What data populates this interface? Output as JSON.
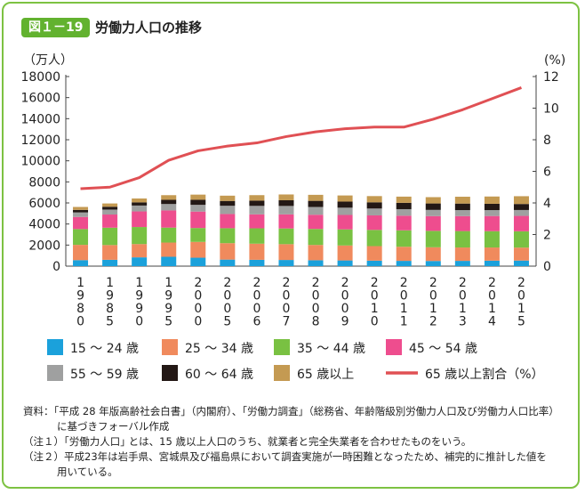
{
  "figure": {
    "badge": "図１－19",
    "title": "労働力人口の推移"
  },
  "colors": {
    "frame": "#7dc242",
    "badge": "#62b22f",
    "ratio_line": "#e05054"
  },
  "chart_data": {
    "type": "bar",
    "stacked": true,
    "left_unit": "（万人）",
    "right_unit": "(%)",
    "ylim_left": [
      0,
      18000
    ],
    "yticks_left": [
      "0",
      "2000",
      "4000",
      "6000",
      "8000",
      "10000",
      "12000",
      "14000",
      "16000",
      "18000"
    ],
    "ylim_right": [
      0,
      12
    ],
    "yticks_right": [
      "0",
      "2",
      "4",
      "6",
      "8",
      "10",
      "12"
    ],
    "categories": [
      "1980",
      "1985",
      "1990",
      "1995",
      "2000",
      "2005",
      "2006",
      "2007",
      "2008",
      "2009",
      "2010",
      "2011",
      "2012",
      "2013",
      "2014",
      "2015"
    ],
    "series": [
      {
        "name": "15 ～ 24 歳",
        "color": "#1ba1db",
        "values": [
          570,
          600,
          834,
          888,
          800,
          620,
          600,
          585,
          560,
          540,
          520,
          500,
          490,
          500,
          520,
          530
        ]
      },
      {
        "name": "25 ～ 34 歳",
        "color": "#f08a5d",
        "values": [
          1450,
          1400,
          1260,
          1350,
          1500,
          1560,
          1530,
          1500,
          1450,
          1420,
          1380,
          1340,
          1300,
          1270,
          1250,
          1230
        ]
      },
      {
        "name": "35 ～ 44 歳",
        "color": "#79c142",
        "values": [
          1500,
          1650,
          1620,
          1420,
          1320,
          1420,
          1460,
          1490,
          1520,
          1530,
          1540,
          1560,
          1560,
          1560,
          1550,
          1550
        ]
      },
      {
        "name": "45 ～ 54 歳",
        "color": "#ee4d8e",
        "values": [
          1150,
          1250,
          1480,
          1630,
          1560,
          1350,
          1330,
          1340,
          1350,
          1370,
          1380,
          1390,
          1400,
          1420,
          1440,
          1460
        ]
      },
      {
        "name": "55 ～ 59 歳",
        "color": "#9fa0a0",
        "values": [
          430,
          470,
          560,
          610,
          640,
          780,
          800,
          800,
          740,
          690,
          650,
          620,
          590,
          570,
          560,
          560
        ]
      },
      {
        "name": "60 ～ 64 歳",
        "color": "#231815",
        "values": [
          240,
          270,
          300,
          400,
          480,
          460,
          500,
          540,
          580,
          580,
          590,
          600,
          610,
          620,
          600,
          570
        ]
      },
      {
        "name": "65 歳以上",
        "color": "#c49a52",
        "values": [
          280,
          310,
          370,
          440,
          490,
          500,
          520,
          550,
          570,
          580,
          590,
          590,
          600,
          650,
          690,
          740
        ]
      }
    ],
    "line": {
      "name": "65 歳以上割合（%）",
      "axis": "right",
      "color": "#e05054",
      "values": [
        4.9,
        5.0,
        5.6,
        6.7,
        7.3,
        7.6,
        7.8,
        8.2,
        8.5,
        8.7,
        8.8,
        8.8,
        9.3,
        9.9,
        10.6,
        11.3
      ]
    }
  },
  "notes": {
    "source_line1": "資料：｢平成 28 年版高齢社会白書｣（内閣府）、｢労働力調査｣（総務省、年齢階級別労働力人口及び労働力人口比率）",
    "source_line2": "に基づきフォーバル作成",
    "note1": "（注１）｢労働力人口｣ とは、15 歳以上人口のうち、就業者と完全失業者を合わせたものをいう。",
    "note2_line1": "（注２）平成23年は岩手県、宮城県及び福島県において調査実施が一時困難となったため、補完的に推計した値を",
    "note2_line2": "用いている。"
  }
}
